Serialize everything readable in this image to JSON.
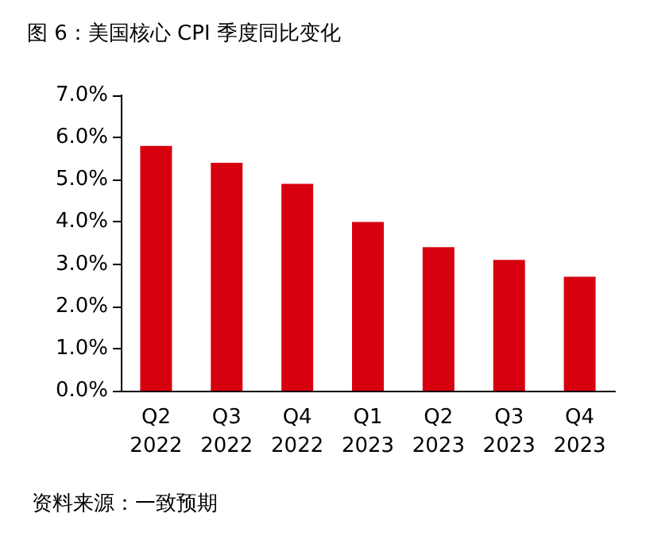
{
  "chart_data": {
    "type": "bar",
    "title": "图 6：美国核心 CPI 季度同比变化",
    "categories": [
      "Q2\n2022",
      "Q3\n2022",
      "Q4\n2022",
      "Q1\n2023",
      "Q2\n2023",
      "Q3\n2023",
      "Q4\n2023"
    ],
    "values": [
      5.8,
      5.4,
      4.9,
      4.0,
      3.4,
      3.1,
      2.7
    ],
    "color": "#d7000f",
    "ylim": [
      0,
      7
    ],
    "yticks": [
      {
        "value": 0,
        "label": "0.0%"
      },
      {
        "value": 1,
        "label": "1.0%"
      },
      {
        "value": 2,
        "label": "2.0%"
      },
      {
        "value": 3,
        "label": "3.0%"
      },
      {
        "value": 4,
        "label": "4.0%"
      },
      {
        "value": 5,
        "label": "5.0%"
      },
      {
        "value": 6,
        "label": "6.0%"
      },
      {
        "value": 7,
        "label": "7.0%"
      }
    ],
    "grid": false,
    "annotations": [
      "资料来源：一致预期"
    ]
  }
}
